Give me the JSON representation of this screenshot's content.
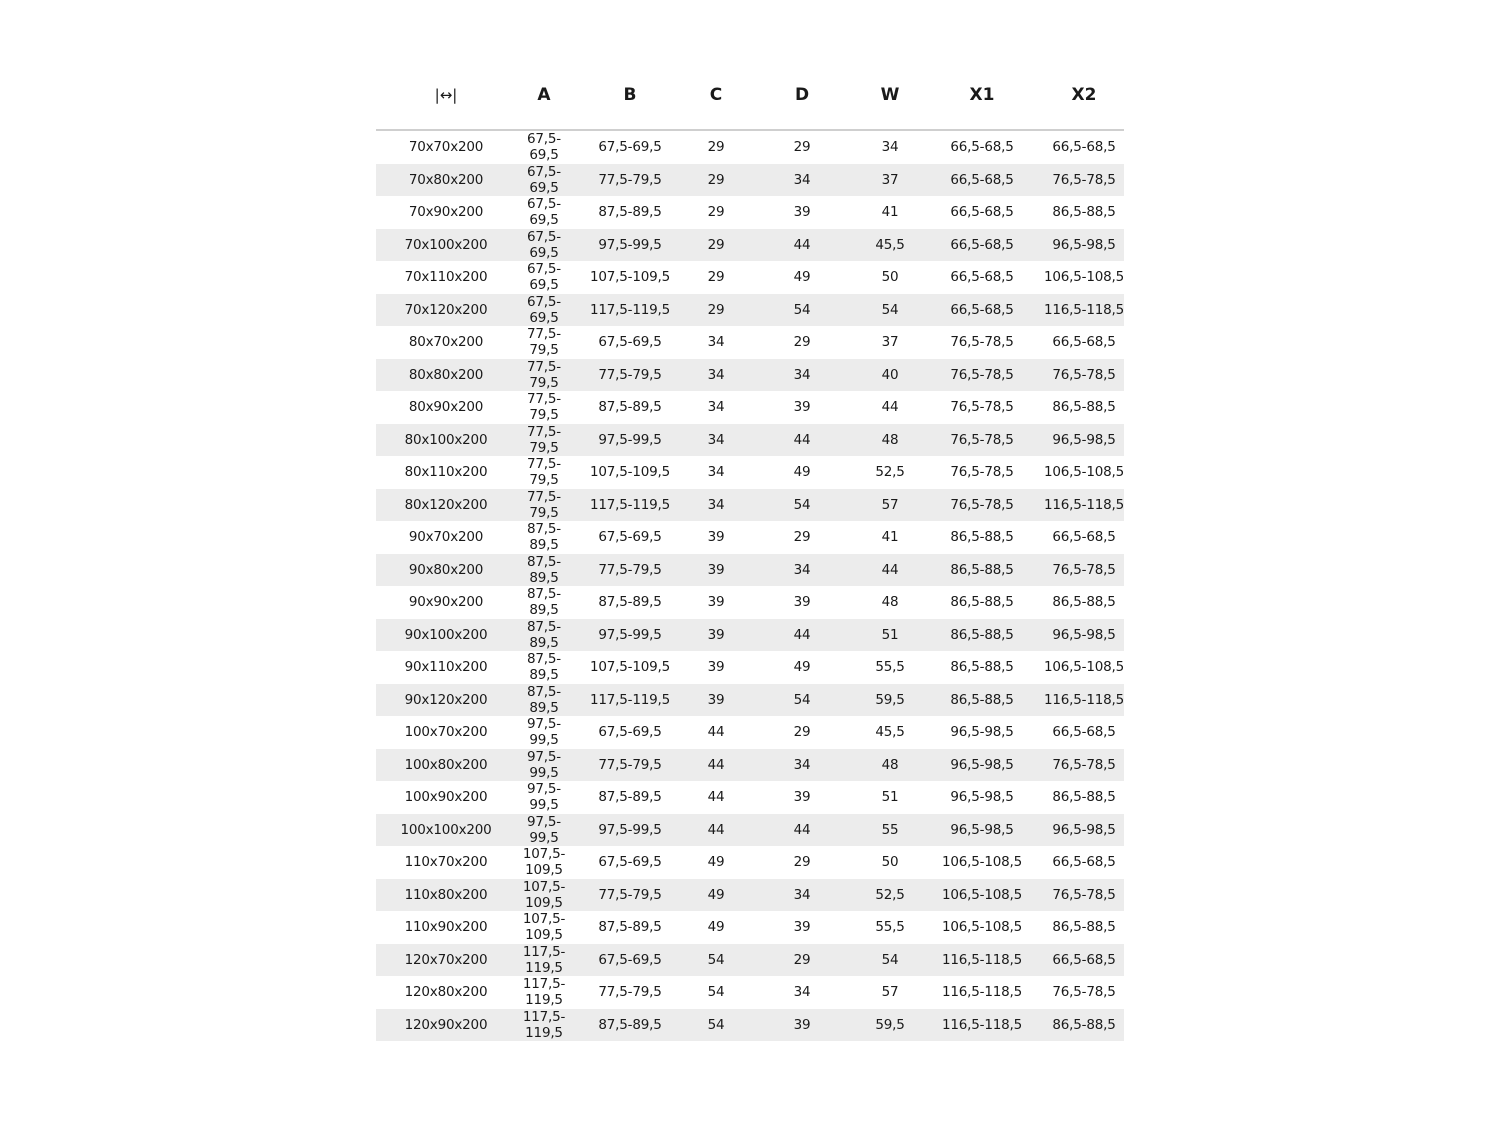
{
  "table": {
    "header_icon": "width-arrow-icon",
    "header_icon_glyph": "|↔|",
    "headers": [
      "A",
      "B",
      "C",
      "D",
      "W",
      "X1",
      "X2"
    ],
    "rows": [
      [
        "70x70x200",
        "67,5-69,5",
        "67,5-69,5",
        "29",
        "29",
        "34",
        "66,5-68,5",
        "66,5-68,5"
      ],
      [
        "70x80x200",
        "67,5-69,5",
        "77,5-79,5",
        "29",
        "34",
        "37",
        "66,5-68,5",
        "76,5-78,5"
      ],
      [
        "70x90x200",
        "67,5-69,5",
        "87,5-89,5",
        "29",
        "39",
        "41",
        "66,5-68,5",
        "86,5-88,5"
      ],
      [
        "70x100x200",
        "67,5-69,5",
        "97,5-99,5",
        "29",
        "44",
        "45,5",
        "66,5-68,5",
        "96,5-98,5"
      ],
      [
        "70x110x200",
        "67,5-69,5",
        "107,5-109,5",
        "29",
        "49",
        "50",
        "66,5-68,5",
        "106,5-108,5"
      ],
      [
        "70x120x200",
        "67,5-69,5",
        "117,5-119,5",
        "29",
        "54",
        "54",
        "66,5-68,5",
        "116,5-118,5"
      ],
      [
        "80x70x200",
        "77,5-79,5",
        "67,5-69,5",
        "34",
        "29",
        "37",
        "76,5-78,5",
        "66,5-68,5"
      ],
      [
        "80x80x200",
        "77,5-79,5",
        "77,5-79,5",
        "34",
        "34",
        "40",
        "76,5-78,5",
        "76,5-78,5"
      ],
      [
        "80x90x200",
        "77,5-79,5",
        "87,5-89,5",
        "34",
        "39",
        "44",
        "76,5-78,5",
        "86,5-88,5"
      ],
      [
        "80x100x200",
        "77,5-79,5",
        "97,5-99,5",
        "34",
        "44",
        "48",
        "76,5-78,5",
        "96,5-98,5"
      ],
      [
        "80x110x200",
        "77,5-79,5",
        "107,5-109,5",
        "34",
        "49",
        "52,5",
        "76,5-78,5",
        "106,5-108,5"
      ],
      [
        "80x120x200",
        "77,5-79,5",
        "117,5-119,5",
        "34",
        "54",
        "57",
        "76,5-78,5",
        "116,5-118,5"
      ],
      [
        "90x70x200",
        "87,5-89,5",
        "67,5-69,5",
        "39",
        "29",
        "41",
        "86,5-88,5",
        "66,5-68,5"
      ],
      [
        "90x80x200",
        "87,5-89,5",
        "77,5-79,5",
        "39",
        "34",
        "44",
        "86,5-88,5",
        "76,5-78,5"
      ],
      [
        "90x90x200",
        "87,5-89,5",
        "87,5-89,5",
        "39",
        "39",
        "48",
        "86,5-88,5",
        "86,5-88,5"
      ],
      [
        "90x100x200",
        "87,5-89,5",
        "97,5-99,5",
        "39",
        "44",
        "51",
        "86,5-88,5",
        "96,5-98,5"
      ],
      [
        "90x110x200",
        "87,5-89,5",
        "107,5-109,5",
        "39",
        "49",
        "55,5",
        "86,5-88,5",
        "106,5-108,5"
      ],
      [
        "90x120x200",
        "87,5-89,5",
        "117,5-119,5",
        "39",
        "54",
        "59,5",
        "86,5-88,5",
        "116,5-118,5"
      ],
      [
        "100x70x200",
        "97,5-99,5",
        "67,5-69,5",
        "44",
        "29",
        "45,5",
        "96,5-98,5",
        "66,5-68,5"
      ],
      [
        "100x80x200",
        "97,5-99,5",
        "77,5-79,5",
        "44",
        "34",
        "48",
        "96,5-98,5",
        "76,5-78,5"
      ],
      [
        "100x90x200",
        "97,5-99,5",
        "87,5-89,5",
        "44",
        "39",
        "51",
        "96,5-98,5",
        "86,5-88,5"
      ],
      [
        "100x100x200",
        "97,5-99,5",
        "97,5-99,5",
        "44",
        "44",
        "55",
        "96,5-98,5",
        "96,5-98,5"
      ],
      [
        "110x70x200",
        "107,5-109,5",
        "67,5-69,5",
        "49",
        "29",
        "50",
        "106,5-108,5",
        "66,5-68,5"
      ],
      [
        "110x80x200",
        "107,5-109,5",
        "77,5-79,5",
        "49",
        "34",
        "52,5",
        "106,5-108,5",
        "76,5-78,5"
      ],
      [
        "110x90x200",
        "107,5-109,5",
        "87,5-89,5",
        "49",
        "39",
        "55,5",
        "106,5-108,5",
        "86,5-88,5"
      ],
      [
        "120x70x200",
        "117,5-119,5",
        "67,5-69,5",
        "54",
        "29",
        "54",
        "116,5-118,5",
        "66,5-68,5"
      ],
      [
        "120x80x200",
        "117,5-119,5",
        "77,5-79,5",
        "54",
        "34",
        "57",
        "116,5-118,5",
        "76,5-78,5"
      ],
      [
        "120x90x200",
        "117,5-119,5",
        "87,5-89,5",
        "54",
        "39",
        "59,5",
        "116,5-118,5",
        "86,5-88,5"
      ]
    ]
  }
}
